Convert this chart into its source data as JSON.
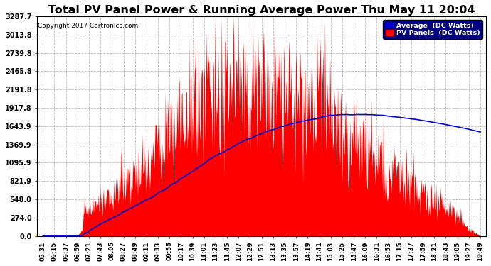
{
  "title": "Total PV Panel Power & Running Average Power Thu May 11 20:04",
  "copyright": "Copyright 2017 Cartronics.com",
  "legend_avg": "Average  (DC Watts)",
  "legend_pv": "PV Panels  (DC Watts)",
  "yticks": [
    0.0,
    274.0,
    548.0,
    821.9,
    1095.9,
    1369.9,
    1643.9,
    1917.8,
    2191.8,
    2465.8,
    2739.8,
    3013.8,
    3287.7
  ],
  "ymax": 3287.7,
  "bg_color": "#ffffff",
  "grid_color": "#aaaaaa",
  "pv_color": "#ff0000",
  "avg_color": "#0000cc",
  "title_fontsize": 11.5,
  "time_labels": [
    "05:31",
    "06:15",
    "06:37",
    "06:59",
    "07:21",
    "07:43",
    "08:05",
    "08:27",
    "08:49",
    "09:11",
    "09:33",
    "09:55",
    "10:17",
    "10:39",
    "11:01",
    "11:23",
    "11:45",
    "12:07",
    "12:29",
    "12:51",
    "13:13",
    "13:35",
    "13:57",
    "14:19",
    "14:41",
    "15:03",
    "15:25",
    "15:47",
    "16:09",
    "16:31",
    "16:53",
    "17:15",
    "17:37",
    "17:59",
    "18:21",
    "18:43",
    "19:05",
    "19:27",
    "19:49"
  ]
}
